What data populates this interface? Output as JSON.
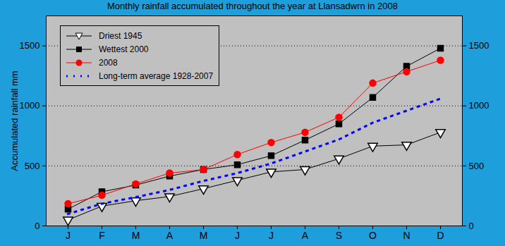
{
  "chart_data": {
    "type": "line",
    "title": "Monthly rainfall accumulated throughout the year at Llansadwrn in 2008",
    "y_label": "Accumulated rainfall mm",
    "categories": [
      "J",
      "F",
      "M",
      "A",
      "M",
      "J",
      "J",
      "A",
      "S",
      "O",
      "N",
      "D"
    ],
    "series": [
      {
        "name": "Driest 1945",
        "color": "#000000",
        "marker": "triangle_down",
        "line_style": "solid",
        "values": [
          50,
          165,
          210,
          245,
          310,
          380,
          450,
          470,
          560,
          665,
          675,
          780
        ]
      },
      {
        "name": "Wettest 2000",
        "color": "#000000",
        "marker": "square",
        "line_style": "solid",
        "values": [
          140,
          285,
          340,
          415,
          470,
          510,
          585,
          715,
          850,
          1070,
          1330,
          1480
        ]
      },
      {
        "name": "2008",
        "color": "#ff0000",
        "marker": "circle",
        "line_style": "solid",
        "values": [
          185,
          255,
          350,
          440,
          470,
          595,
          695,
          780,
          905,
          1190,
          1285,
          1380
        ]
      },
      {
        "name": "Long-term average 1928-2007",
        "color": "#0000ff",
        "marker": "none",
        "line_style": "dotted",
        "values": [
          100,
          185,
          240,
          300,
          375,
          440,
          520,
          620,
          720,
          860,
          960,
          1060
        ]
      }
    ],
    "ylim": [
      0,
      1750
    ],
    "yticks": [
      0,
      500,
      1000,
      1500
    ],
    "grid": true,
    "legend": "upper left"
  }
}
